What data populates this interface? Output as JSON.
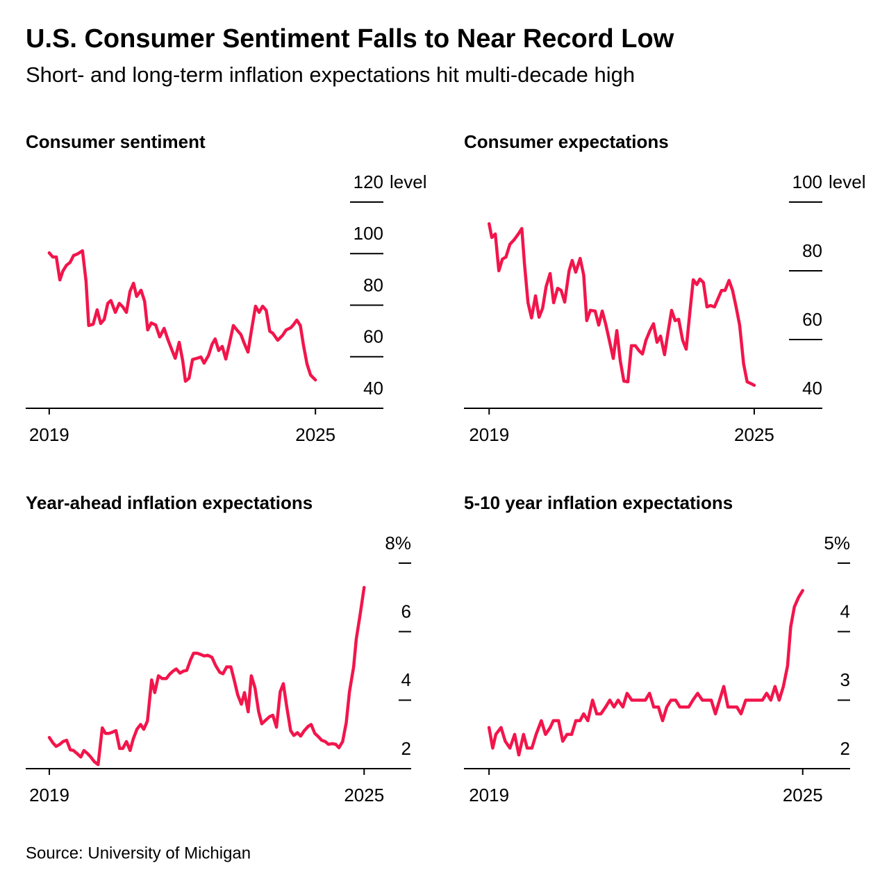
{
  "title": "U.S. Consumer Sentiment Falls to Near Record Low",
  "subtitle": "Short- and long-term inflation expectations hit multi-decade high",
  "source": "Source: University of Michigan",
  "chart_data": [
    {
      "type": "line",
      "title": "Consumer sentiment",
      "y_unit": "level",
      "color": "#f2154b",
      "xlim": [
        2018.47,
        2026.5
      ],
      "xticks": [
        2019,
        2025
      ],
      "ylim": [
        40,
        120
      ],
      "yticks": [
        40,
        60,
        80,
        100,
        120
      ],
      "x": [
        2019,
        2019.08,
        2019.16,
        2019.24,
        2019.31,
        2019.39,
        2019.47,
        2019.55,
        2019.63,
        2019.75,
        2019.83,
        2019.89,
        2019.99,
        2020.08,
        2020.16,
        2020.24,
        2020.32,
        2020.39,
        2020.49,
        2020.58,
        2020.66,
        2020.74,
        2020.82,
        2020.9,
        2020.97,
        2021.07,
        2021.15,
        2021.22,
        2021.3,
        2021.4,
        2021.49,
        2021.59,
        2021.68,
        2021.77,
        2021.84,
        2021.93,
        2022.01,
        2022.07,
        2022.15,
        2022.23,
        2022.33,
        2022.42,
        2022.49,
        2022.59,
        2022.67,
        2022.74,
        2022.82,
        2022.9,
        2022.98,
        2023.06,
        2023.15,
        2023.23,
        2023.32,
        2023.4,
        2023.48,
        2023.56,
        2023.65,
        2023.73,
        2023.81,
        2023.89,
        2023.97,
        2024.04,
        2024.15,
        2024.26,
        2024.34,
        2024.44,
        2024.5,
        2024.58,
        2024.66,
        2024.73,
        2024.81,
        2024.89,
        2025
      ],
      "values": [
        100.3,
        98.7,
        98.7,
        89.8,
        93.3,
        95.5,
        96.6,
        99.3,
        99.8,
        101.1,
        89.3,
        72.1,
        72.6,
        78.2,
        72.9,
        74.5,
        80.7,
        81.8,
        77.2,
        80.7,
        79.3,
        77.2,
        85.3,
        88.5,
        83.4,
        85.8,
        81.5,
        70.4,
        73.1,
        72.3,
        67.7,
        71,
        66.4,
        62.4,
        59.4,
        65.6,
        58.3,
        50.5,
        51.6,
        58.9,
        59.4,
        59.9,
        57.5,
        60.5,
        64.8,
        66.9,
        62.4,
        64,
        59.1,
        65,
        72.1,
        70.4,
        68.6,
        65,
        61.8,
        70.4,
        79.6,
        77.2,
        79.6,
        78,
        69.9,
        69.1,
        66.4,
        68.3,
        70.4,
        71.2,
        72.3,
        74.2,
        72.1,
        64.5,
        57.2,
        52.9,
        51
      ]
    },
    {
      "type": "line",
      "title": "Consumer expectations",
      "y_unit": "level",
      "color": "#f2154b",
      "xlim": [
        2018.43,
        2026.51
      ],
      "xticks": [
        2019,
        2025
      ],
      "ylim": [
        40,
        100
      ],
      "yticks": [
        40,
        60,
        80,
        100
      ],
      "x": [
        2019,
        2019.06,
        2019.14,
        2019.22,
        2019.3,
        2019.38,
        2019.47,
        2019.57,
        2019.66,
        2019.74,
        2019.8,
        2019.88,
        2019.96,
        2020.05,
        2020.13,
        2020.21,
        2020.29,
        2020.38,
        2020.46,
        2020.55,
        2020.63,
        2020.71,
        2020.81,
        2020.88,
        2020.96,
        2021.06,
        2021.14,
        2021.21,
        2021.29,
        2021.4,
        2021.48,
        2021.56,
        2021.64,
        2021.72,
        2021.81,
        2021.89,
        2021.97,
        2022.05,
        2022.14,
        2022.22,
        2022.31,
        2022.39,
        2022.47,
        2022.55,
        2022.64,
        2022.72,
        2022.8,
        2022.88,
        2022.97,
        2023.05,
        2023.13,
        2023.21,
        2023.29,
        2023.38,
        2023.46,
        2023.54,
        2023.62,
        2023.7,
        2023.77,
        2023.85,
        2023.93,
        2024.01,
        2024.1,
        2024.18,
        2024.26,
        2024.34,
        2024.43,
        2024.51,
        2024.59,
        2024.67,
        2024.76,
        2024.84,
        2024.94,
        2025
      ],
      "values": [
        93.7,
        89.7,
        90.7,
        80,
        83.4,
        84,
        87.7,
        89.1,
        90.7,
        92.3,
        82,
        70.7,
        66.3,
        72.7,
        66.5,
        69.1,
        75.4,
        79.2,
        70.7,
        74.9,
        74.3,
        70.9,
        80,
        83,
        79.6,
        83.6,
        78.8,
        65.5,
        68.5,
        68.3,
        64.2,
        68.3,
        64.4,
        59.8,
        54.5,
        62.6,
        53.7,
        47.9,
        47.7,
        58.2,
        58.2,
        56.8,
        55.8,
        59.8,
        62.6,
        64.6,
        59.2,
        61,
        55.6,
        62.2,
        68.5,
        65.5,
        65.9,
        59.8,
        57.2,
        67.5,
        77.4,
        76,
        77.6,
        76.6,
        69.5,
        69.9,
        69.5,
        71.9,
        74.3,
        74.3,
        77.2,
        74.3,
        69.5,
        64.2,
        52.9,
        47.7,
        47.1,
        46.7
      ]
    },
    {
      "type": "line",
      "title": "Year-ahead inflation expectations",
      "color": "#f2154b",
      "xlim": [
        2018.55,
        2025.87
      ],
      "xticks": [
        2019,
        2025
      ],
      "ylim": [
        2,
        8
      ],
      "yticks": [
        2,
        4,
        6,
        {
          "value": 8,
          "label": "8%"
        }
      ],
      "x": [
        2019,
        2019.07,
        2019.13,
        2019.2,
        2019.26,
        2019.33,
        2019.4,
        2019.46,
        2019.53,
        2019.6,
        2019.66,
        2019.73,
        2019.79,
        2019.86,
        2019.93,
        2020.01,
        2020.07,
        2020.14,
        2020.21,
        2020.27,
        2020.34,
        2020.4,
        2020.47,
        2020.54,
        2020.6,
        2020.67,
        2020.74,
        2020.8,
        2020.87,
        2020.95,
        2021.01,
        2021.08,
        2021.15,
        2021.23,
        2021.29,
        2021.36,
        2021.42,
        2021.49,
        2021.56,
        2021.62,
        2021.69,
        2021.75,
        2021.82,
        2021.89,
        2021.95,
        2022.02,
        2022.1,
        2022.17,
        2022.25,
        2022.31,
        2022.38,
        2022.46,
        2022.52,
        2022.59,
        2022.66,
        2022.72,
        2022.79,
        2022.85,
        2022.92,
        2022.99,
        2023.05,
        2023.12,
        2023.2,
        2023.26,
        2023.33,
        2023.4,
        2023.46,
        2023.53,
        2023.6,
        2023.66,
        2023.73,
        2023.79,
        2023.86,
        2023.93,
        2023.99,
        2024.06,
        2024.13,
        2024.19,
        2024.26,
        2024.32,
        2024.39,
        2024.46,
        2024.52,
        2024.59,
        2024.66,
        2024.72,
        2024.8,
        2024.85,
        2024.92,
        2025
      ],
      "values": [
        2.91,
        2.75,
        2.65,
        2.71,
        2.79,
        2.83,
        2.55,
        2.53,
        2.44,
        2.34,
        2.53,
        2.44,
        2.34,
        2.2,
        2.12,
        3.19,
        3.03,
        3.03,
        3.07,
        3.11,
        2.59,
        2.59,
        2.79,
        2.53,
        2.87,
        3.15,
        3.29,
        3.15,
        3.39,
        4.59,
        4.22,
        4.71,
        4.63,
        4.63,
        4.75,
        4.85,
        4.91,
        4.79,
        4.85,
        4.87,
        5.17,
        5.37,
        5.37,
        5.33,
        5.29,
        5.31,
        5.25,
        5.01,
        4.81,
        4.77,
        4.97,
        4.97,
        4.61,
        4.16,
        3.88,
        4.22,
        3.66,
        4.71,
        4.36,
        3.66,
        3.31,
        3.41,
        3.52,
        3.56,
        3.21,
        4.24,
        4.48,
        3.76,
        3.11,
        2.97,
        3.05,
        2.95,
        3.11,
        3.23,
        3.29,
        3.03,
        2.93,
        2.83,
        2.79,
        2.71,
        2.73,
        2.71,
        2.61,
        2.79,
        3.35,
        4.24,
        4.97,
        5.78,
        6.46,
        7.29
      ]
    },
    {
      "type": "line",
      "title": "5-10 year inflation expectations",
      "color": "#f2154b",
      "xlim": [
        2018.52,
        2025.88
      ],
      "xticks": [
        2019,
        2025
      ],
      "ylim": [
        2,
        5
      ],
      "yticks": [
        2,
        3,
        4,
        {
          "value": 5,
          "label": "5%"
        }
      ],
      "x": [
        2019,
        2019.07,
        2019.13,
        2019.23,
        2019.31,
        2019.4,
        2019.49,
        2019.57,
        2019.66,
        2019.73,
        2019.82,
        2019.9,
        2020,
        2020.08,
        2020.17,
        2020.23,
        2020.33,
        2020.41,
        2020.49,
        2020.58,
        2020.66,
        2020.74,
        2020.81,
        2020.89,
        2020.98,
        2021.06,
        2021.14,
        2021.23,
        2021.31,
        2021.39,
        2021.47,
        2021.56,
        2021.64,
        2021.73,
        2021.81,
        2021.89,
        2021.99,
        2022.07,
        2022.15,
        2022.24,
        2022.32,
        2022.4,
        2022.48,
        2022.57,
        2022.65,
        2022.74,
        2022.82,
        2022.9,
        2022.99,
        2023.08,
        2023.16,
        2023.25,
        2023.33,
        2023.41,
        2023.49,
        2023.57,
        2023.66,
        2023.74,
        2023.82,
        2023.91,
        2023.99,
        2024.07,
        2024.15,
        2024.23,
        2024.31,
        2024.39,
        2024.47,
        2024.55,
        2024.63,
        2024.71,
        2024.77,
        2024.84,
        2024.92,
        2025
      ],
      "values": [
        2.6,
        2.3,
        2.5,
        2.6,
        2.4,
        2.3,
        2.5,
        2.2,
        2.5,
        2.3,
        2.3,
        2.5,
        2.7,
        2.5,
        2.6,
        2.7,
        2.7,
        2.4,
        2.5,
        2.5,
        2.7,
        2.7,
        2.8,
        2.7,
        3,
        2.8,
        2.8,
        2.9,
        3,
        2.9,
        3,
        2.9,
        3.1,
        3,
        3,
        3,
        3,
        3.1,
        2.9,
        2.9,
        2.7,
        2.9,
        3,
        3,
        2.9,
        2.9,
        2.9,
        3,
        3.1,
        3,
        3,
        3,
        2.8,
        3,
        3.2,
        2.9,
        2.9,
        2.9,
        2.8,
        3,
        3,
        3,
        3,
        3,
        3.1,
        3,
        3.2,
        3,
        3.2,
        3.5,
        4.07,
        4.36,
        4.5,
        4.6
      ]
    }
  ]
}
